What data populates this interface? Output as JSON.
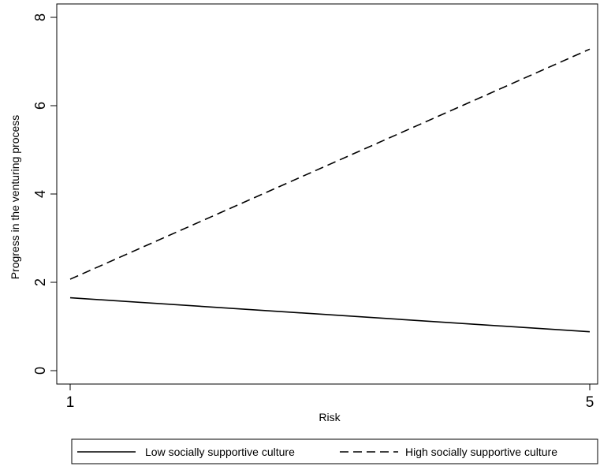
{
  "chart_data": {
    "type": "line",
    "xlabel": "Risk",
    "ylabel": "Progress in the venturing process",
    "xlim": [
      1,
      5
    ],
    "ylim": [
      0,
      8
    ],
    "x_ticks": [
      "1",
      "5"
    ],
    "y_ticks": [
      "0",
      "2",
      "4",
      "6",
      "8"
    ],
    "grid": false,
    "legend_position": "bottom",
    "series": [
      {
        "name": "Low socially supportive culture",
        "style": "solid",
        "color": "#000000",
        "x": [
          1,
          5
        ],
        "y": [
          1.65,
          0.88
        ]
      },
      {
        "name": "High socially supportive culture",
        "style": "dashed",
        "color": "#000000",
        "x": [
          1,
          5
        ],
        "y": [
          2.07,
          7.28
        ]
      }
    ]
  }
}
